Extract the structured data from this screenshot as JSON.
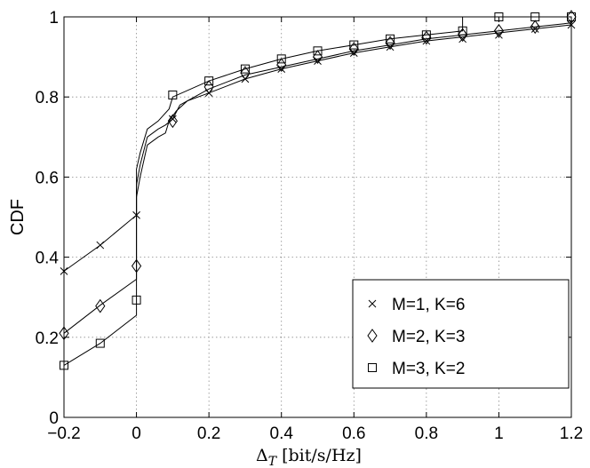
{
  "chart_data": {
    "type": "line",
    "title": "",
    "xlabel": "ΔT [bit/s/Hz]",
    "xlabel_parts": {
      "symbol": "Δ",
      "subscript": "T",
      "unit": "[bit/s/Hz]"
    },
    "ylabel": "CDF",
    "xlim": [
      -0.2,
      1.2
    ],
    "ylim": [
      0,
      1
    ],
    "grid": true,
    "legend_position": "bottom-right",
    "xticks": [
      -0.2,
      0,
      0.2,
      0.4,
      0.6,
      0.8,
      1,
      1.2
    ],
    "xtick_labels": [
      "−0.2",
      "0",
      "0.2",
      "0.4",
      "0.6",
      "0.8",
      "1",
      "1.2"
    ],
    "yticks": [
      0,
      0.2,
      0.4,
      0.6,
      0.8,
      1
    ],
    "ytick_labels": [
      "0",
      "0.2",
      "0.4",
      "0.6",
      "0.8",
      "1"
    ],
    "series": [
      {
        "name": "M=1, K=6",
        "marker": "x",
        "line": [
          [
            -0.2,
            0.365
          ],
          [
            -0.1,
            0.43
          ],
          [
            0,
            0.505
          ],
          [
            0,
            0.55
          ],
          [
            0.01,
            0.6
          ],
          [
            0.03,
            0.68
          ],
          [
            0.06,
            0.7
          ],
          [
            0.08,
            0.71
          ],
          [
            0.09,
            0.74
          ],
          [
            0.11,
            0.765
          ],
          [
            0.14,
            0.79
          ],
          [
            0.2,
            0.81
          ],
          [
            0.3,
            0.845
          ],
          [
            0.4,
            0.87
          ],
          [
            0.5,
            0.89
          ],
          [
            0.6,
            0.91
          ],
          [
            0.7,
            0.925
          ],
          [
            0.8,
            0.94
          ],
          [
            0.9,
            0.95
          ],
          [
            1.0,
            0.96
          ],
          [
            1.1,
            0.97
          ],
          [
            1.2,
            0.98
          ]
        ],
        "markers": [
          [
            -0.2,
            0.365
          ],
          [
            -0.1,
            0.43
          ],
          [
            0,
            0.505
          ],
          [
            0.1,
            0.745
          ],
          [
            0.2,
            0.81
          ],
          [
            0.3,
            0.845
          ],
          [
            0.4,
            0.87
          ],
          [
            0.5,
            0.89
          ],
          [
            0.6,
            0.91
          ],
          [
            0.7,
            0.925
          ],
          [
            0.8,
            0.94
          ],
          [
            0.9,
            0.945
          ],
          [
            1.0,
            0.955
          ],
          [
            1.1,
            0.97
          ],
          [
            1.2,
            0.98
          ]
        ]
      },
      {
        "name": "M=2, K=3",
        "marker": "diamond",
        "line": [
          [
            -0.2,
            0.21
          ],
          [
            -0.1,
            0.28
          ],
          [
            0,
            0.345
          ],
          [
            0,
            0.58
          ],
          [
            0.01,
            0.63
          ],
          [
            0.03,
            0.7
          ],
          [
            0.06,
            0.72
          ],
          [
            0.08,
            0.73
          ],
          [
            0.1,
            0.745
          ],
          [
            0.12,
            0.78
          ],
          [
            0.2,
            0.82
          ],
          [
            0.3,
            0.855
          ],
          [
            0.4,
            0.875
          ],
          [
            0.5,
            0.895
          ],
          [
            0.6,
            0.915
          ],
          [
            0.7,
            0.93
          ],
          [
            0.8,
            0.945
          ],
          [
            0.9,
            0.955
          ],
          [
            1.0,
            0.965
          ],
          [
            1.1,
            0.975
          ],
          [
            1.2,
            0.985
          ]
        ],
        "markers": [
          [
            -0.2,
            0.21
          ],
          [
            -0.1,
            0.278
          ],
          [
            0,
            0.378
          ],
          [
            0.1,
            0.74
          ],
          [
            0.2,
            0.825
          ],
          [
            0.3,
            0.86
          ],
          [
            0.4,
            0.88
          ],
          [
            0.5,
            0.9
          ],
          [
            0.6,
            0.92
          ],
          [
            0.7,
            0.935
          ],
          [
            0.8,
            0.948
          ],
          [
            0.9,
            0.955
          ],
          [
            1.0,
            0.965
          ],
          [
            1.1,
            0.975
          ],
          [
            1.2,
            1.0
          ]
        ]
      },
      {
        "name": "M=3, K=2",
        "marker": "square",
        "line": [
          [
            -0.2,
            0.13
          ],
          [
            -0.1,
            0.185
          ],
          [
            0,
            0.255
          ],
          [
            0,
            0.62
          ],
          [
            0.01,
            0.66
          ],
          [
            0.03,
            0.72
          ],
          [
            0.06,
            0.74
          ],
          [
            0.09,
            0.77
          ],
          [
            0.1,
            0.8
          ],
          [
            0.2,
            0.84
          ],
          [
            0.3,
            0.87
          ],
          [
            0.4,
            0.895
          ],
          [
            0.5,
            0.915
          ],
          [
            0.6,
            0.93
          ],
          [
            0.7,
            0.945
          ],
          [
            0.8,
            0.955
          ],
          [
            0.9,
            0.965
          ],
          [
            0.9,
            1.0
          ],
          [
            1.2,
            1.0
          ]
        ],
        "markers": [
          [
            -0.2,
            0.13
          ],
          [
            -0.1,
            0.185
          ],
          [
            0,
            0.293
          ],
          [
            0.1,
            0.805
          ],
          [
            0.2,
            0.84
          ],
          [
            0.3,
            0.87
          ],
          [
            0.4,
            0.895
          ],
          [
            0.5,
            0.915
          ],
          [
            0.6,
            0.93
          ],
          [
            0.7,
            0.945
          ],
          [
            0.8,
            0.955
          ],
          [
            0.9,
            0.965
          ],
          [
            1.0,
            1.0
          ],
          [
            1.1,
            1.0
          ],
          [
            1.2,
            1.0
          ]
        ]
      }
    ]
  }
}
